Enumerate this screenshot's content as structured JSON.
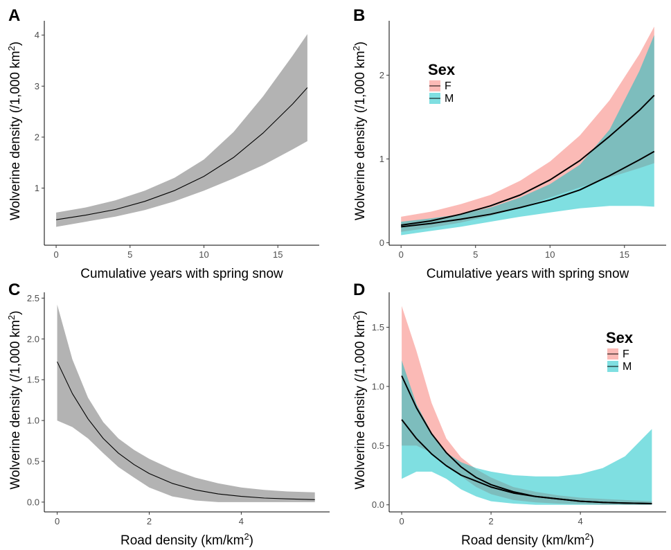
{
  "chart_data": [
    {
      "panel": "A",
      "type": "line",
      "xlabel": "Cumulative years with spring snow",
      "ylabel": "Wolverine density (/1,000 km",
      "ylabel_sup": "2",
      "ylabel_end": ")",
      "xlim": [
        -0.8,
        17.8
      ],
      "ylim": [
        -0.12,
        4.2
      ],
      "xticks": [
        0,
        5,
        10,
        15
      ],
      "yticks": [
        1,
        2,
        3,
        4
      ],
      "series": [
        {
          "fill": "#b3b3b3",
          "line_width": 1.1,
          "x": [
            0,
            2,
            4,
            6,
            8,
            10,
            12,
            14,
            16,
            17
          ],
          "y": [
            0.38,
            0.47,
            0.58,
            0.74,
            0.95,
            1.23,
            1.6,
            2.08,
            2.65,
            2.97
          ],
          "lower": [
            0.24,
            0.34,
            0.44,
            0.57,
            0.74,
            0.95,
            1.19,
            1.45,
            1.76,
            1.92
          ],
          "upper": [
            0.52,
            0.62,
            0.76,
            0.95,
            1.2,
            1.56,
            2.1,
            2.8,
            3.6,
            4.02
          ]
        }
      ]
    },
    {
      "panel": "B",
      "type": "line",
      "xlabel": "Cumulative years with spring snow",
      "ylabel": "Wolverine density (/1,000 km",
      "ylabel_sup": "2",
      "ylabel_end": ")",
      "xlim": [
        -0.8,
        17.8
      ],
      "ylim": [
        -0.03,
        2.6
      ],
      "xticks": [
        0,
        5,
        10,
        15
      ],
      "yticks": [
        0,
        1,
        2
      ],
      "legend": {
        "title": "Sex",
        "position": "top-left"
      },
      "series": [
        {
          "name": "F",
          "fill": "#f8766d",
          "x": [
            0,
            2,
            4,
            6,
            8,
            10,
            12,
            14,
            16,
            17
          ],
          "y": [
            0.21,
            0.26,
            0.34,
            0.44,
            0.57,
            0.75,
            0.98,
            1.27,
            1.58,
            1.76
          ],
          "lower": [
            0.13,
            0.18,
            0.24,
            0.32,
            0.42,
            0.54,
            0.66,
            0.78,
            0.89,
            0.95
          ],
          "upper": [
            0.31,
            0.37,
            0.46,
            0.57,
            0.74,
            0.97,
            1.28,
            1.7,
            2.25,
            2.58
          ]
        },
        {
          "name": "M",
          "fill": "#00bfc4",
          "x": [
            0,
            2,
            4,
            6,
            8,
            10,
            12,
            14,
            16,
            17
          ],
          "y": [
            0.19,
            0.23,
            0.28,
            0.34,
            0.42,
            0.51,
            0.63,
            0.8,
            0.99,
            1.09
          ],
          "lower": [
            0.09,
            0.14,
            0.19,
            0.25,
            0.31,
            0.36,
            0.41,
            0.44,
            0.44,
            0.43
          ],
          "upper": [
            0.25,
            0.29,
            0.34,
            0.42,
            0.54,
            0.7,
            0.93,
            1.35,
            2.05,
            2.48
          ]
        }
      ]
    },
    {
      "panel": "C",
      "type": "line",
      "xlabel": "Road density (km/km",
      "xlabel_sup": "2",
      "xlabel_end": ")",
      "ylabel": "Wolverine density (/1,000 km",
      "ylabel_sup": "2",
      "ylabel_end": ")",
      "xlim": [
        -0.28,
        5.92
      ],
      "ylim": [
        -0.12,
        2.52
      ],
      "xticks": [
        0,
        2,
        4
      ],
      "yticks": [
        0.0,
        0.5,
        1.0,
        1.5,
        2.0,
        2.5
      ],
      "ytick_labels": [
        "0.0",
        "0.5",
        "1.0",
        "1.5",
        "2.0",
        "2.5"
      ],
      "series": [
        {
          "fill": "#b3b3b3",
          "line_width": 1.1,
          "x": [
            0,
            0.33,
            0.67,
            1,
            1.33,
            1.67,
            2,
            2.5,
            3,
            3.5,
            4,
            4.5,
            5,
            5.6
          ],
          "y": [
            1.72,
            1.33,
            1.02,
            0.78,
            0.6,
            0.46,
            0.35,
            0.23,
            0.15,
            0.1,
            0.07,
            0.05,
            0.04,
            0.03
          ],
          "lower": [
            1.0,
            0.92,
            0.78,
            0.6,
            0.43,
            0.3,
            0.18,
            0.07,
            0.02,
            0.0,
            0.0,
            0.0,
            0.0,
            0.0
          ],
          "upper": [
            2.42,
            1.75,
            1.28,
            0.98,
            0.78,
            0.64,
            0.53,
            0.4,
            0.3,
            0.23,
            0.18,
            0.15,
            0.13,
            0.12
          ]
        }
      ]
    },
    {
      "panel": "D",
      "type": "line",
      "xlabel": "Road density (km/km",
      "xlabel_sup": "2",
      "xlabel_end": ")",
      "ylabel": "Wolverine density (/1,000 km",
      "ylabel_sup": "2",
      "ylabel_end": ")",
      "xlim": [
        -0.28,
        5.92
      ],
      "ylim": [
        -0.06,
        1.76
      ],
      "xticks": [
        0,
        2,
        4
      ],
      "yticks": [
        0.0,
        0.5,
        1.0,
        1.5
      ],
      "ytick_labels": [
        "0.0",
        "0.5",
        "1.0",
        "1.5"
      ],
      "legend": {
        "title": "Sex",
        "position": "top-right"
      },
      "series": [
        {
          "name": "F",
          "fill": "#f8766d",
          "x": [
            0,
            0.33,
            0.67,
            1,
            1.33,
            1.67,
            2,
            2.5,
            3,
            3.5,
            4,
            4.5,
            5,
            5.6
          ],
          "y": [
            1.09,
            0.82,
            0.6,
            0.44,
            0.32,
            0.23,
            0.17,
            0.11,
            0.07,
            0.05,
            0.03,
            0.02,
            0.015,
            0.01
          ],
          "lower": [
            0.5,
            0.5,
            0.44,
            0.34,
            0.24,
            0.15,
            0.09,
            0.04,
            0.02,
            0.01,
            0.005,
            0.0,
            0.0,
            0.0
          ],
          "upper": [
            1.68,
            1.3,
            0.86,
            0.56,
            0.4,
            0.3,
            0.23,
            0.15,
            0.11,
            0.08,
            0.06,
            0.05,
            0.04,
            0.03
          ]
        },
        {
          "name": "M",
          "fill": "#00bfc4",
          "x": [
            0,
            0.33,
            0.67,
            1,
            1.33,
            1.67,
            2,
            2.5,
            3,
            3.5,
            4,
            4.5,
            5,
            5.6
          ],
          "y": [
            0.72,
            0.56,
            0.43,
            0.33,
            0.25,
            0.2,
            0.15,
            0.1,
            0.07,
            0.05,
            0.03,
            0.02,
            0.015,
            0.01
          ],
          "lower": [
            0.22,
            0.28,
            0.28,
            0.22,
            0.13,
            0.07,
            0.03,
            0.01,
            0.0,
            0.0,
            0.0,
            0.0,
            0.0,
            0.0
          ],
          "upper": [
            1.22,
            0.85,
            0.61,
            0.44,
            0.36,
            0.31,
            0.28,
            0.25,
            0.24,
            0.24,
            0.26,
            0.31,
            0.41,
            0.64
          ]
        }
      ]
    }
  ]
}
